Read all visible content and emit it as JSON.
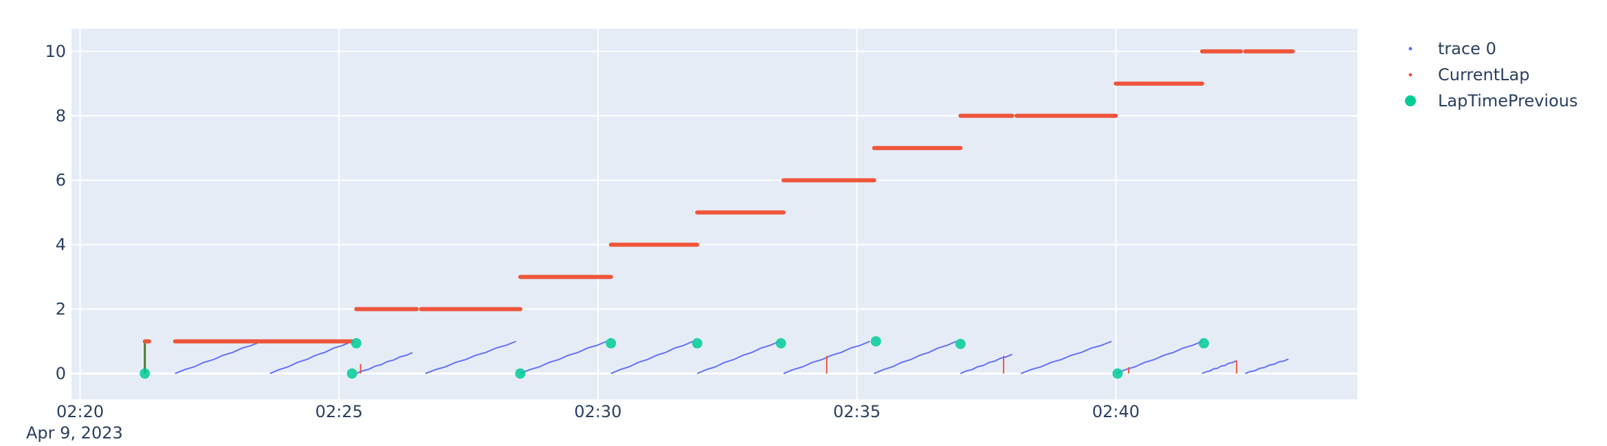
{
  "chart_data": {
    "type": "scatter",
    "x_axis": {
      "type": "date",
      "range": [
        "2023-04-09T02:19:50",
        "2023-04-09T02:44:40"
      ],
      "ticks": [
        "02:20",
        "02:25",
        "02:30",
        "02:35",
        "02:40"
      ],
      "tick_values": [
        "2023-04-09T02:20:00",
        "2023-04-09T02:25:00",
        "2023-04-09T02:30:00",
        "2023-04-09T02:35:00",
        "2023-04-09T02:40:00"
      ],
      "date_label": "Apr 9, 2023"
    },
    "y_axis": {
      "range": [
        -0.8,
        10.7
      ],
      "ticks": [
        0,
        2,
        4,
        6,
        8,
        10
      ]
    },
    "grid": true,
    "plot_background": "#e5ecf6",
    "legend": {
      "position": "right",
      "entries": [
        {
          "name": "trace 0",
          "color": "#636efa",
          "marker": "small-dot"
        },
        {
          "name": "CurrentLap",
          "color": "#ef553b",
          "marker": "small-dot"
        },
        {
          "name": "LapTimePrevious",
          "color": "#00cc96",
          "marker": "large-dot"
        }
      ]
    },
    "series": [
      {
        "name": "trace 0",
        "color": "#636efa",
        "mode": "ramp-segments",
        "segments": [
          {
            "start": "2023-04-09T02:21:50",
            "end": "2023-04-09T02:23:30",
            "y_start": 0.0,
            "y_end": 1.0
          },
          {
            "start": "2023-04-09T02:23:40",
            "end": "2023-04-09T02:25:15",
            "y_start": 0.0,
            "y_end": 1.0
          },
          {
            "start": "2023-04-09T02:25:20",
            "end": "2023-04-09T02:26:25",
            "y_start": 0.0,
            "y_end": 0.65
          },
          {
            "start": "2023-04-09T02:26:40",
            "end": "2023-04-09T02:28:25",
            "y_start": 0.0,
            "y_end": 1.0
          },
          {
            "start": "2023-04-09T02:28:30",
            "end": "2023-04-09T02:30:10",
            "y_start": 0.0,
            "y_end": 1.0
          },
          {
            "start": "2023-04-09T02:30:15",
            "end": "2023-04-09T02:31:50",
            "y_start": 0.0,
            "y_end": 1.0
          },
          {
            "start": "2023-04-09T02:31:55",
            "end": "2023-04-09T02:33:30",
            "y_start": 0.0,
            "y_end": 1.0
          },
          {
            "start": "2023-04-09T02:33:35",
            "end": "2023-04-09T02:35:15",
            "y_start": 0.0,
            "y_end": 1.0
          },
          {
            "start": "2023-04-09T02:35:20",
            "end": "2023-04-09T02:36:55",
            "y_start": 0.0,
            "y_end": 1.0
          },
          {
            "start": "2023-04-09T02:37:00",
            "end": "2023-04-09T02:38:00",
            "y_start": 0.0,
            "y_end": 0.6
          },
          {
            "start": "2023-04-09T02:38:10",
            "end": "2023-04-09T02:39:55",
            "y_start": 0.0,
            "y_end": 1.0
          },
          {
            "start": "2023-04-09T02:40:00",
            "end": "2023-04-09T02:41:40",
            "y_start": 0.0,
            "y_end": 1.0
          },
          {
            "start": "2023-04-09T02:41:40",
            "end": "2023-04-09T02:42:20",
            "y_start": 0.0,
            "y_end": 0.4
          },
          {
            "start": "2023-04-09T02:42:30",
            "end": "2023-04-09T02:43:20",
            "y_start": 0.0,
            "y_end": 0.45
          }
        ]
      },
      {
        "name": "CurrentLap",
        "color": "#ef553b",
        "mode": "dense-markers",
        "segments": [
          {
            "start": "2023-04-09T02:21:15",
            "end": "2023-04-09T02:21:20",
            "y": 1
          },
          {
            "start": "2023-04-09T02:21:50",
            "end": "2023-04-09T02:25:15",
            "y": 1
          },
          {
            "start": "2023-04-09T02:25:20",
            "end": "2023-04-09T02:26:30",
            "y": 2
          },
          {
            "start": "2023-04-09T02:26:35",
            "end": "2023-04-09T02:28:30",
            "y": 2
          },
          {
            "start": "2023-04-09T02:28:30",
            "end": "2023-04-09T02:30:15",
            "y": 3
          },
          {
            "start": "2023-04-09T02:30:15",
            "end": "2023-04-09T02:31:55",
            "y": 4
          },
          {
            "start": "2023-04-09T02:31:55",
            "end": "2023-04-09T02:33:35",
            "y": 5
          },
          {
            "start": "2023-04-09T02:33:35",
            "end": "2023-04-09T02:35:20",
            "y": 6
          },
          {
            "start": "2023-04-09T02:35:20",
            "end": "2023-04-09T02:37:00",
            "y": 7
          },
          {
            "start": "2023-04-09T02:37:00",
            "end": "2023-04-09T02:38:00",
            "y": 8
          },
          {
            "start": "2023-04-09T02:38:05",
            "end": "2023-04-09T02:40:00",
            "y": 8
          },
          {
            "start": "2023-04-09T02:40:00",
            "end": "2023-04-09T02:41:40",
            "y": 9
          },
          {
            "start": "2023-04-09T02:41:40",
            "end": "2023-04-09T02:42:25",
            "y": 10
          },
          {
            "start": "2023-04-09T02:42:30",
            "end": "2023-04-09T02:43:25",
            "y": 10
          }
        ],
        "spikes": [
          {
            "x": "2023-04-09T02:25:25",
            "y_start": 0.0,
            "y_end": 0.3
          },
          {
            "x": "2023-04-09T02:34:25",
            "y_start": 0.0,
            "y_end": 0.55
          },
          {
            "x": "2023-04-09T02:37:50",
            "y_start": 0.0,
            "y_end": 0.55
          },
          {
            "x": "2023-04-09T02:40:15",
            "y_start": 0.0,
            "y_end": 0.2
          },
          {
            "x": "2023-04-09T02:42:20",
            "y_start": 0.0,
            "y_end": 0.4
          }
        ]
      },
      {
        "name": "LapTimePrevious",
        "color": "#00cc96",
        "mode": "markers",
        "points": [
          {
            "x": "2023-04-09T02:21:15",
            "y": 0.0
          },
          {
            "x": "2023-04-09T02:25:20",
            "y": 0.94
          },
          {
            "x": "2023-04-09T02:25:15",
            "y": 0.0
          },
          {
            "x": "2023-04-09T02:28:30",
            "y": 0.0
          },
          {
            "x": "2023-04-09T02:30:15",
            "y": 0.94
          },
          {
            "x": "2023-04-09T02:31:55",
            "y": 0.94
          },
          {
            "x": "2023-04-09T02:33:32",
            "y": 0.94
          },
          {
            "x": "2023-04-09T02:35:22",
            "y": 1.0
          },
          {
            "x": "2023-04-09T02:37:00",
            "y": 0.92
          },
          {
            "x": "2023-04-09T02:40:02",
            "y": 0.0
          },
          {
            "x": "2023-04-09T02:41:42",
            "y": 0.94
          }
        ]
      }
    ],
    "connector": {
      "color": "#4c7a32",
      "x": "2023-04-09T02:21:15",
      "y_start": 0,
      "y_end": 1
    }
  }
}
